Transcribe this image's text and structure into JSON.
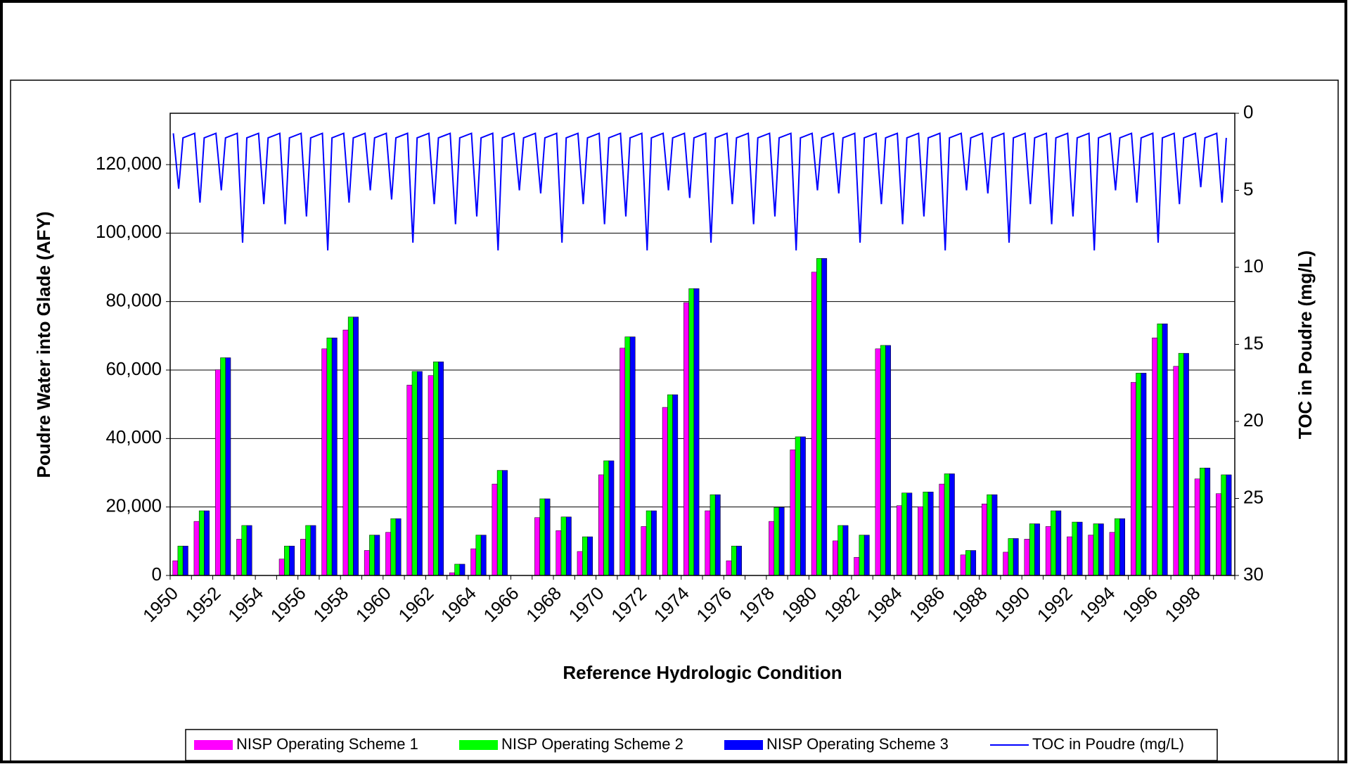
{
  "chart_data": {
    "type": "bar_line",
    "x_label": "Reference Hydrologic Condition",
    "y_label": "Poudre Water into Glade (AFY)",
    "y2_label": "TOC in Poudre (mg/L)",
    "categories": [
      "1950",
      null,
      "1952",
      null,
      "1954",
      null,
      "1956",
      null,
      "1958",
      null,
      "1960",
      null,
      "1962",
      null,
      "1964",
      null,
      "1966",
      null,
      "1968",
      null,
      "1970",
      null,
      "1972",
      null,
      "1974",
      null,
      "1976",
      null,
      "1978",
      null,
      "1980",
      null,
      "1982",
      null,
      "1984",
      null,
      "1986",
      null,
      "1988",
      null,
      "1990",
      null,
      "1992",
      null,
      "1994",
      null,
      "1996",
      null,
      "1998",
      null
    ],
    "ylim": [
      0,
      135000
    ],
    "yticks": [
      0,
      {
        "value": 20000,
        "label": "20,000"
      },
      {
        "value": 40000,
        "label": "40,000"
      },
      {
        "value": 60000,
        "label": "60,000"
      },
      {
        "value": 80000,
        "label": "80,000"
      },
      {
        "value": 100000,
        "label": "100,000"
      },
      {
        "value": 120000,
        "label": "120,000"
      }
    ],
    "y2lim": [
      0,
      30
    ],
    "y2_reversed": true,
    "y2ticks": [
      0,
      5,
      10,
      15,
      20,
      25,
      30
    ],
    "grid": true,
    "legend": "bottom",
    "series": [
      {
        "name": "NISP Operating Scheme 1",
        "color": "#ff00ff",
        "values": [
          4300,
          15800,
          60100,
          10600,
          0,
          4800,
          10600,
          66200,
          71700,
          7300,
          12600,
          55600,
          58400,
          800,
          7800,
          26700,
          0,
          16900,
          13100,
          7000,
          29400,
          66400,
          14300,
          49100,
          79700,
          18900,
          4300,
          0,
          15800,
          36700,
          88600,
          10100,
          5300,
          66200,
          20400,
          20100,
          26700,
          6000,
          20900,
          6800,
          10600,
          14300,
          11300,
          11800,
          12600,
          56400,
          69400,
          61100,
          28200,
          23900
        ]
      },
      {
        "name": "NISP Operating Scheme 2",
        "color": "#00ff00",
        "values": [
          8600,
          18900,
          63600,
          14600,
          0,
          8600,
          14600,
          69400,
          75500,
          11800,
          16600,
          59600,
          62400,
          3300,
          11800,
          30700,
          0,
          22400,
          17100,
          11300,
          33500,
          69700,
          18900,
          52800,
          83800,
          23600,
          8600,
          0,
          19900,
          40500,
          92600,
          14600,
          11800,
          67200,
          24100,
          24400,
          29700,
          7300,
          23600,
          10800,
          15100,
          18900,
          15600,
          15100,
          16600,
          59100,
          73500,
          64900,
          31400,
          29400
        ]
      },
      {
        "name": "NISP Operating Scheme 3",
        "color": "#0000ff",
        "values": [
          8600,
          18900,
          63600,
          14600,
          0,
          8600,
          14600,
          69400,
          75500,
          11800,
          16600,
          59600,
          62400,
          3300,
          11800,
          30700,
          0,
          22400,
          17100,
          11300,
          33500,
          69700,
          18900,
          52800,
          83800,
          23600,
          8600,
          0,
          19900,
          40500,
          92600,
          14600,
          11800,
          67200,
          24100,
          24400,
          29700,
          7300,
          23600,
          10800,
          15100,
          18900,
          15600,
          15100,
          16600,
          59100,
          73500,
          64900,
          31400,
          29400
        ]
      },
      {
        "name": "TOC in Poudre (mg/L)",
        "color": "#0000ff",
        "type": "line",
        "axis": "y2",
        "xlim": [
          1950,
          2000
        ],
        "x": [
          1950.15,
          1950.4,
          1950.6,
          1951.15,
          1951.4,
          1951.6,
          1952.15,
          1952.4,
          1952.6,
          1953.15,
          1953.4,
          1953.6,
          1954.15,
          1954.4,
          1954.6,
          1955.15,
          1955.4,
          1955.6,
          1956.15,
          1956.4,
          1956.6,
          1957.15,
          1957.4,
          1957.6,
          1958.15,
          1958.4,
          1958.6,
          1959.15,
          1959.4,
          1959.6,
          1960.15,
          1960.4,
          1960.6,
          1961.15,
          1961.4,
          1961.6,
          1962.15,
          1962.4,
          1962.6,
          1963.15,
          1963.4,
          1963.6,
          1964.15,
          1964.4,
          1964.6,
          1965.15,
          1965.4,
          1965.6,
          1966.15,
          1966.4,
          1966.6,
          1967.15,
          1967.4,
          1967.6,
          1968.15,
          1968.4,
          1968.6,
          1969.15,
          1969.4,
          1969.6,
          1970.15,
          1970.4,
          1970.6,
          1971.15,
          1971.4,
          1971.6,
          1972.15,
          1972.4,
          1972.6,
          1973.15,
          1973.4,
          1973.6,
          1974.15,
          1974.4,
          1974.6,
          1975.15,
          1975.4,
          1975.6,
          1976.15,
          1976.4,
          1976.6,
          1977.15,
          1977.4,
          1977.6,
          1978.15,
          1978.4,
          1978.6,
          1979.15,
          1979.4,
          1979.6,
          1980.15,
          1980.4,
          1980.6,
          1981.15,
          1981.4,
          1981.6,
          1982.15,
          1982.4,
          1982.6,
          1983.15,
          1983.4,
          1983.6,
          1984.15,
          1984.4,
          1984.6,
          1985.15,
          1985.4,
          1985.6,
          1986.15,
          1986.4,
          1986.6,
          1987.15,
          1987.4,
          1987.6,
          1988.15,
          1988.4,
          1988.6,
          1989.15,
          1989.4,
          1989.6,
          1990.15,
          1990.4,
          1990.6,
          1991.15,
          1991.4,
          1991.6,
          1992.15,
          1992.4,
          1992.6,
          1993.15,
          1993.4,
          1993.6,
          1994.15,
          1994.4,
          1994.6,
          1995.15,
          1995.4,
          1995.6,
          1996.15,
          1996.4,
          1996.6,
          1997.15,
          1997.4,
          1997.6,
          1998.15,
          1998.4,
          1998.6,
          1999.15,
          1999.4,
          1999.6
        ],
        "values": [
          1.3,
          4.9,
          1.6,
          1.3,
          5.8,
          1.6,
          1.3,
          5.0,
          1.6,
          1.3,
          8.4,
          1.6,
          1.3,
          5.9,
          1.6,
          1.3,
          7.2,
          1.6,
          1.3,
          6.7,
          1.6,
          1.3,
          8.9,
          1.6,
          1.3,
          5.8,
          1.6,
          1.3,
          5.0,
          1.6,
          1.3,
          5.6,
          1.6,
          1.3,
          8.4,
          1.6,
          1.3,
          5.9,
          1.6,
          1.3,
          7.2,
          1.6,
          1.3,
          6.7,
          1.6,
          1.3,
          8.9,
          1.6,
          1.3,
          5.0,
          1.6,
          1.3,
          5.2,
          1.6,
          1.3,
          8.4,
          1.6,
          1.3,
          5.9,
          1.6,
          1.3,
          7.2,
          1.6,
          1.3,
          6.7,
          1.6,
          1.3,
          8.9,
          1.6,
          1.3,
          5.0,
          1.6,
          1.3,
          5.5,
          1.6,
          1.3,
          8.4,
          1.6,
          1.3,
          5.9,
          1.6,
          1.3,
          7.2,
          1.6,
          1.3,
          6.7,
          1.6,
          1.3,
          8.9,
          1.6,
          1.3,
          5.0,
          1.6,
          1.3,
          5.2,
          1.6,
          1.3,
          8.4,
          1.6,
          1.3,
          5.9,
          1.6,
          1.3,
          7.2,
          1.6,
          1.3,
          6.7,
          1.6,
          1.3,
          8.9,
          1.6,
          1.3,
          5.0,
          1.6,
          1.3,
          5.2,
          1.6,
          1.3,
          8.4,
          1.6,
          1.3,
          5.9,
          1.6,
          1.3,
          7.2,
          1.6,
          1.3,
          6.7,
          1.6,
          1.3,
          8.9,
          1.6,
          1.3,
          5.0,
          1.6,
          1.3,
          5.8,
          1.6,
          1.3,
          8.4,
          1.6,
          1.3,
          5.9,
          1.6,
          1.3,
          4.8,
          1.6,
          1.3,
          5.8,
          1.6
        ]
      }
    ]
  }
}
